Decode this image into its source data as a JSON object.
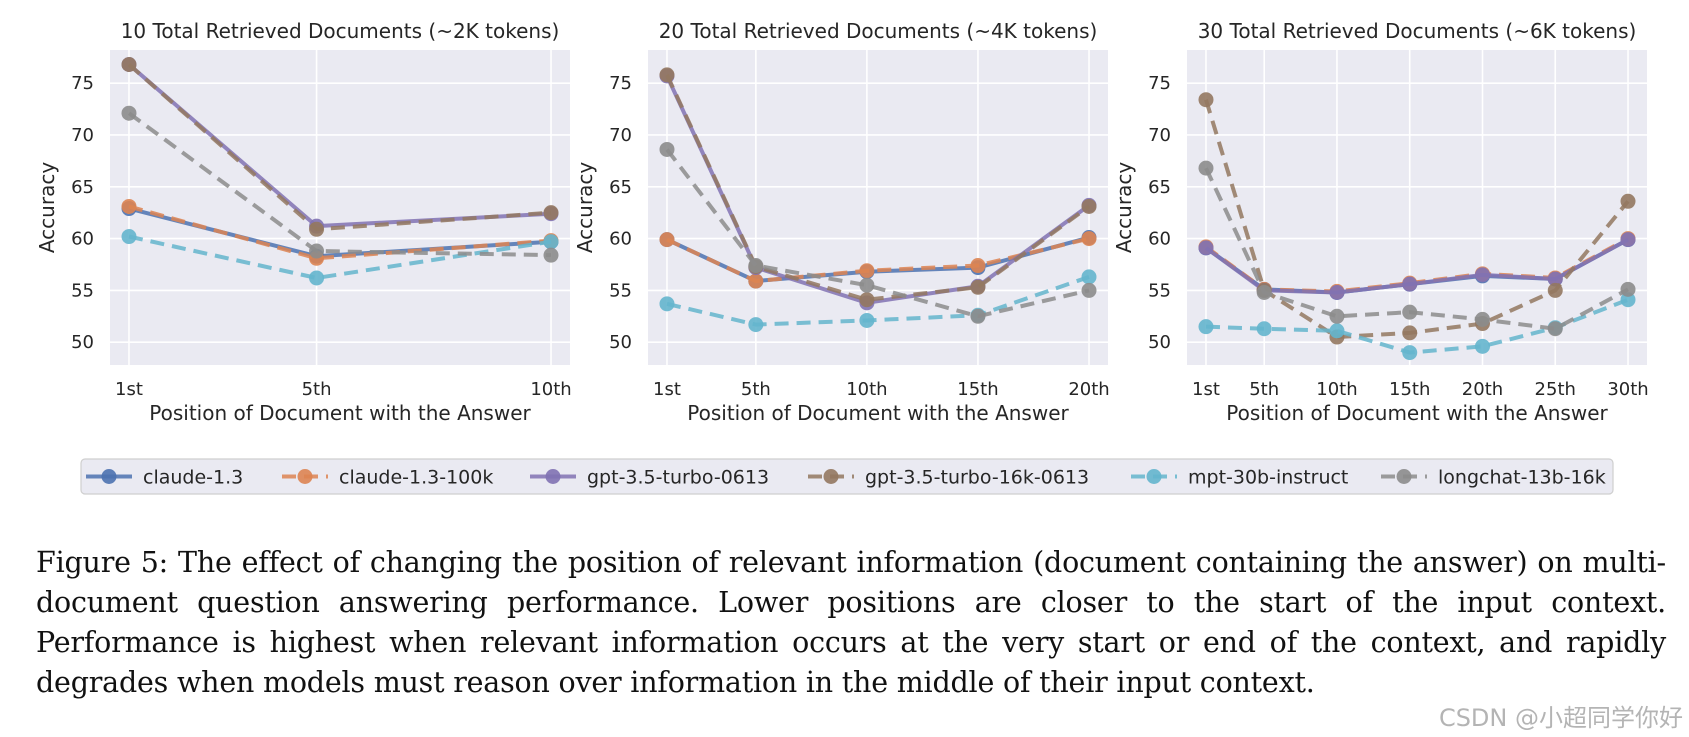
{
  "chart_data": [
    {
      "type": "line",
      "title": "10 Total Retrieved Documents (~2K tokens)",
      "xlabel": "Position of Document with the Answer",
      "ylabel": "Accuracy",
      "x": [
        1,
        5,
        10
      ],
      "xticklabels": [
        "1st",
        "5th",
        "10th"
      ],
      "ylim": [
        47.8,
        78.2
      ],
      "yticks": [
        50,
        55,
        60,
        65,
        70,
        75
      ],
      "grid": true,
      "series": [
        {
          "name": "claude-1.3",
          "values": [
            62.9,
            58.3,
            59.7
          ]
        },
        {
          "name": "claude-1.3-100k",
          "values": [
            63.1,
            58.1,
            59.8
          ]
        },
        {
          "name": "gpt-3.5-turbo-0613",
          "values": [
            76.8,
            61.2,
            62.4
          ]
        },
        {
          "name": "gpt-3.5-turbo-16k-0613",
          "values": [
            76.8,
            60.9,
            62.5
          ]
        },
        {
          "name": "mpt-30b-instruct",
          "values": [
            60.2,
            56.2,
            59.7
          ]
        },
        {
          "name": "longchat-13b-16k",
          "values": [
            72.1,
            58.8,
            58.4
          ]
        }
      ]
    },
    {
      "type": "line",
      "title": "20 Total Retrieved Documents (~4K tokens)",
      "xlabel": "Position of Document with the Answer",
      "ylabel": "Accuracy",
      "x": [
        1,
        5,
        10,
        15,
        20
      ],
      "xticklabels": [
        "1st",
        "5th",
        "10th",
        "15th",
        "20th"
      ],
      "ylim": [
        47.8,
        78.2
      ],
      "yticks": [
        50,
        55,
        60,
        65,
        70,
        75
      ],
      "grid": true,
      "series": [
        {
          "name": "claude-1.3",
          "values": [
            59.9,
            55.9,
            56.8,
            57.2,
            60.1
          ]
        },
        {
          "name": "claude-1.3-100k",
          "values": [
            59.9,
            55.9,
            56.9,
            57.4,
            60.0
          ]
        },
        {
          "name": "gpt-3.5-turbo-0613",
          "values": [
            75.7,
            57.2,
            53.8,
            55.4,
            63.2
          ]
        },
        {
          "name": "gpt-3.5-turbo-16k-0613",
          "values": [
            75.8,
            57.3,
            54.1,
            55.3,
            63.1
          ]
        },
        {
          "name": "mpt-30b-instruct",
          "values": [
            53.7,
            51.7,
            52.1,
            52.6,
            56.3
          ]
        },
        {
          "name": "longchat-13b-16k",
          "values": [
            68.6,
            57.4,
            55.5,
            52.5,
            55.0
          ]
        }
      ]
    },
    {
      "type": "line",
      "title": "30 Total Retrieved Documents (~6K tokens)",
      "xlabel": "Position of Document with the Answer",
      "ylabel": "Accuracy",
      "x": [
        1,
        5,
        10,
        15,
        20,
        25,
        30
      ],
      "xticklabels": [
        "1st",
        "5th",
        "10th",
        "15th",
        "20th",
        "25th",
        "30th"
      ],
      "ylim": [
        47.8,
        78.2
      ],
      "yticks": [
        50,
        55,
        60,
        65,
        70,
        75
      ],
      "grid": true,
      "series": [
        {
          "name": "claude-1.3",
          "values": [
            59.1,
            55.1,
            54.8,
            55.6,
            56.4,
            56.1,
            59.9
          ]
        },
        {
          "name": "claude-1.3-100k",
          "values": [
            59.2,
            55.1,
            54.9,
            55.7,
            56.6,
            56.2,
            60.0
          ]
        },
        {
          "name": "gpt-3.5-turbo-0613",
          "values": [
            59.1,
            55.0,
            54.8,
            55.6,
            56.5,
            56.1,
            59.9
          ]
        },
        {
          "name": "gpt-3.5-turbo-16k-0613",
          "values": [
            73.4,
            55.0,
            50.5,
            50.9,
            51.8,
            55.0,
            63.6
          ]
        },
        {
          "name": "mpt-30b-instruct",
          "values": [
            51.5,
            51.3,
            51.1,
            49.0,
            49.6,
            51.4,
            54.1
          ]
        },
        {
          "name": "longchat-13b-16k",
          "values": [
            66.8,
            54.8,
            52.5,
            52.9,
            52.2,
            51.3,
            55.1
          ]
        }
      ]
    }
  ],
  "legend": {
    "placement": "bottom-center",
    "entries": [
      {
        "name": "claude-1.3",
        "color": "#4c72b0",
        "dashed": false
      },
      {
        "name": "claude-1.3-100k",
        "color": "#dd8452",
        "dashed": true
      },
      {
        "name": "gpt-3.5-turbo-0613",
        "color": "#8172b3",
        "dashed": false
      },
      {
        "name": "gpt-3.5-turbo-16k-0613",
        "color": "#937860",
        "dashed": true
      },
      {
        "name": "mpt-30b-instruct",
        "color": "#64b5cd",
        "dashed": true
      },
      {
        "name": "longchat-13b-16k",
        "color": "#8c8c8c",
        "dashed": true
      }
    ]
  },
  "caption": "Figure 5: The effect of changing the position of relevant information (document containing the answer) on multi-document question answering performance. Lower positions are closer to the start of the input context. Performance is highest when relevant information occurs at the very start or end of the context, and rapidly degrades when models must reason over information in the middle of their input context.",
  "watermark": "CSDN @小超同学你好"
}
